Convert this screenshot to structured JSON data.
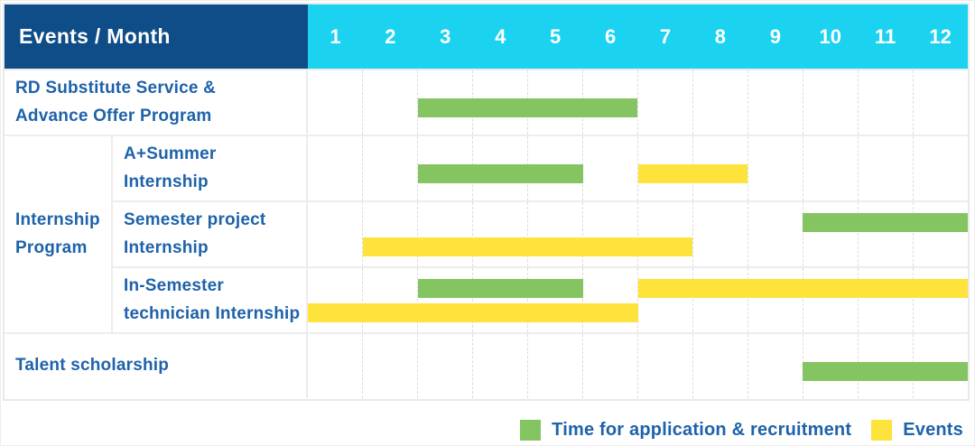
{
  "colors": {
    "header_bg": "#0E4D87",
    "months_bg": "#1BD2F0",
    "green": "#84C561",
    "yellow": "#FDE33C",
    "label_text": "#1E62AA"
  },
  "table": {
    "corner_label": "Events / Month",
    "months": [
      "1",
      "2",
      "3",
      "4",
      "5",
      "6",
      "7",
      "8",
      "9",
      "10",
      "11",
      "12"
    ],
    "rows": [
      {
        "sub": false,
        "label_lines": [
          "RD Substitute Service &",
          "Advance Offer Program"
        ],
        "bars": [
          {
            "color": "green",
            "start_month": 3,
            "end_month": 6,
            "level": "mid"
          }
        ]
      },
      {
        "sub": true,
        "group": {
          "label_lines": [
            "Internship",
            "Program"
          ],
          "rowspan": 3
        },
        "label_lines": [
          "A+Summer",
          "Internship"
        ],
        "bars": [
          {
            "color": "green",
            "start_month": 3,
            "end_month": 5,
            "level": "mid"
          },
          {
            "color": "yellow",
            "start_month": 7,
            "end_month": 8,
            "level": "mid"
          }
        ]
      },
      {
        "sub": true,
        "label_lines": [
          "Semester project",
          "Internship"
        ],
        "bars": [
          {
            "color": "green",
            "start_month": 10,
            "end_month": 12,
            "level": "top"
          },
          {
            "color": "yellow",
            "start_month": 2,
            "end_month": 7,
            "level": "bottom"
          }
        ]
      },
      {
        "sub": true,
        "label_lines": [
          "In-Semester",
          "technician Internship"
        ],
        "bars": [
          {
            "color": "green",
            "start_month": 3,
            "end_month": 5,
            "level": "top"
          },
          {
            "color": "yellow",
            "start_month": 7,
            "end_month": 12,
            "level": "top"
          },
          {
            "color": "yellow",
            "start_month": 1,
            "end_month": 6,
            "level": "bottom"
          }
        ]
      },
      {
        "sub": false,
        "label_lines": [
          "Talent scholarship"
        ],
        "bars": [
          {
            "color": "green",
            "start_month": 10,
            "end_month": 12,
            "level": "mid"
          }
        ]
      }
    ]
  },
  "legend": {
    "items": [
      {
        "label": "Time for application & recruitment",
        "color": "green"
      },
      {
        "label": "Events",
        "color": "yellow"
      }
    ]
  },
  "chart_data": {
    "type": "gantt",
    "title": "",
    "xlabel": "Month",
    "x_ticks": [
      1,
      2,
      3,
      4,
      5,
      6,
      7,
      8,
      9,
      10,
      11,
      12
    ],
    "legend_position": "bottom-right",
    "legend": [
      {
        "label": "Time for application & recruitment",
        "color": "#84C561"
      },
      {
        "label": "Events",
        "color": "#FDE33C"
      }
    ],
    "tasks": [
      {
        "name": "RD Substitute Service & Advance Offer Program",
        "group": null,
        "spans": [
          {
            "kind": "Time for application & recruitment",
            "months": [
              3,
              6
            ]
          }
        ]
      },
      {
        "name": "A+Summer Internship",
        "group": "Internship Program",
        "spans": [
          {
            "kind": "Time for application & recruitment",
            "months": [
              3,
              5
            ]
          },
          {
            "kind": "Events",
            "months": [
              7,
              8
            ]
          }
        ]
      },
      {
        "name": "Semester project Internship",
        "group": "Internship Program",
        "spans": [
          {
            "kind": "Time for application & recruitment",
            "months": [
              10,
              12
            ]
          },
          {
            "kind": "Events",
            "months": [
              2,
              7
            ]
          }
        ]
      },
      {
        "name": "In-Semester technician Internship",
        "group": "Internship Program",
        "spans": [
          {
            "kind": "Time for application & recruitment",
            "months": [
              3,
              5
            ]
          },
          {
            "kind": "Events",
            "months": [
              7,
              12
            ]
          },
          {
            "kind": "Events",
            "months": [
              1,
              6
            ]
          }
        ]
      },
      {
        "name": "Talent scholarship",
        "group": null,
        "spans": [
          {
            "kind": "Time for application & recruitment",
            "months": [
              10,
              12
            ]
          }
        ]
      }
    ]
  }
}
